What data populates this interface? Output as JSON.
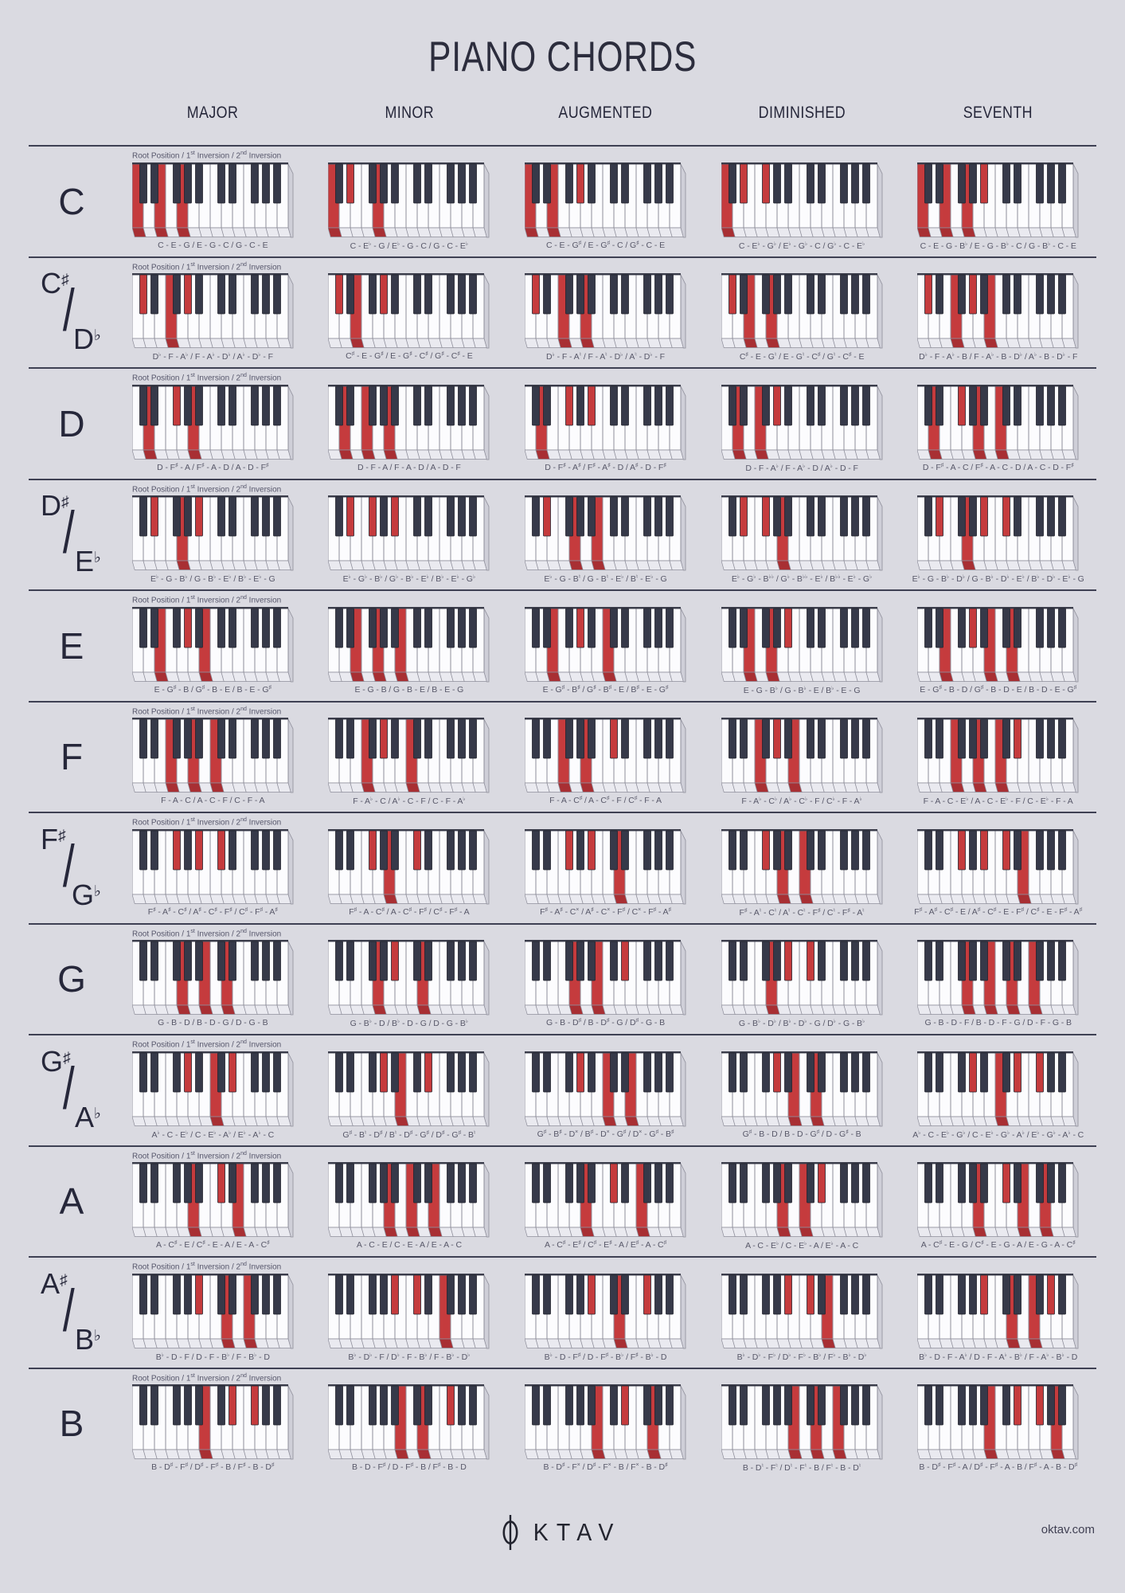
{
  "page": {
    "title": "PIANO CHORDS",
    "background": "#dadae1",
    "ink": "#2c2d3d",
    "accent_red": "#c53b3d",
    "divider_color": "#3e4053"
  },
  "columns": [
    "MAJOR",
    "MINOR",
    "AUGMENTED",
    "DIMINISHED",
    "SEVENTH"
  ],
  "caption": "Root Position  /  1st Inversion  /  2nd Inversion",
  "footer": {
    "brand": "OKTAV",
    "brand_letters_after_o": "KTAV",
    "site": "oktav.com"
  },
  "rows": [
    {
      "root_label": "C",
      "alt_label": null,
      "chords": [
        {
          "quality": "major",
          "notes": "C - E - G / E - G - C / G - C - E",
          "keys": [
            0,
            4,
            7
          ]
        },
        {
          "quality": "minor",
          "notes": "C - E♭ - G / E♭ - G - C / G - C - E♭",
          "keys": [
            0,
            3,
            7
          ]
        },
        {
          "quality": "augmented",
          "notes": "C - E - G♯ / E - G♯ - C / G♯ - C - E",
          "keys": [
            0,
            4,
            8
          ]
        },
        {
          "quality": "diminished",
          "notes": "C - E♭ - G♭ / E♭ - G♭ - C / G♭ - C - E♭",
          "keys": [
            0,
            3,
            6
          ]
        },
        {
          "quality": "seventh",
          "notes": "C - E - G - B♭ / E - G - B♭ - C / G - B♭ - C - E",
          "keys": [
            0,
            4,
            7,
            10
          ]
        }
      ]
    },
    {
      "root_label": "C♯",
      "alt_label": "D♭",
      "chords": [
        {
          "quality": "major",
          "notes": "D♭ - F - A♭ / F - A♭ - D♭ / A♭ - D♭ - F",
          "keys": [
            1,
            5,
            8
          ]
        },
        {
          "quality": "minor",
          "notes": "C♯ - E - G♯ / E - G♯ - C♯ / G♯ - C♯ - E",
          "keys": [
            1,
            4,
            8
          ]
        },
        {
          "quality": "augmented",
          "notes": "D♭ - F - A♮ / F - A♮ - D♭ / A♮ - D♭ - F",
          "keys": [
            1,
            5,
            9
          ]
        },
        {
          "quality": "diminished",
          "notes": "C♯ - E - G♮ / E - G♮ - C♯ / G♮ - C♯ - E",
          "keys": [
            1,
            4,
            7
          ]
        },
        {
          "quality": "seventh",
          "notes": "D♭ - F - A♭ - B / F - A♭ - B - D♭ / A♭ - B - D♭ - F",
          "keys": [
            1,
            5,
            8,
            11
          ]
        }
      ]
    },
    {
      "root_label": "D",
      "alt_label": null,
      "chords": [
        {
          "quality": "major",
          "notes": "D - F♯ - A / F♯ - A - D / A - D - F♯",
          "keys": [
            2,
            6,
            9
          ]
        },
        {
          "quality": "minor",
          "notes": "D - F - A / F - A - D / A - D - F",
          "keys": [
            2,
            5,
            9
          ]
        },
        {
          "quality": "augmented",
          "notes": "D - F♯ - A♯ / F♯ - A♯ - D / A♯ - D - F♯",
          "keys": [
            2,
            6,
            10
          ]
        },
        {
          "quality": "diminished",
          "notes": "D - F - A♭ / F - A♭ - D / A♭ - D - F",
          "keys": [
            2,
            5,
            8
          ]
        },
        {
          "quality": "seventh",
          "notes": "D - F♯ - A - C / F♯ - A - C - D / A - C - D - F♯",
          "keys": [
            2,
            6,
            9,
            12
          ]
        }
      ]
    },
    {
      "root_label": "D♯",
      "alt_label": "E♭",
      "chords": [
        {
          "quality": "major",
          "notes": "E♭ - G - B♭ / G - B♭ - E♭ / B♭ - E♭ - G",
          "keys": [
            3,
            7,
            10
          ]
        },
        {
          "quality": "minor",
          "notes": "E♭ - G♭ - B♭ / G♭ - B♭ - E♭ / B♭ - E♭ - G♭",
          "keys": [
            3,
            6,
            10
          ]
        },
        {
          "quality": "augmented",
          "notes": "E♭ - G - B♮ / G - B♮ - E♭ / B♮ - E♭ - G",
          "keys": [
            3,
            7,
            11
          ]
        },
        {
          "quality": "diminished",
          "notes": "E♭ - G♭ - B♭♭ / G♭ - B♭♭ - E♭ / B♭♭ - E♭ - G♭",
          "keys": [
            3,
            6,
            9
          ]
        },
        {
          "quality": "seventh",
          "notes": "E♭ - G - B♭ - D♭ / G - B♭ - D♭ - E♭ / B♭ - D♭ - E♭ - G",
          "keys": [
            3,
            7,
            10,
            13
          ]
        }
      ]
    },
    {
      "root_label": "E",
      "alt_label": null,
      "chords": [
        {
          "quality": "major",
          "notes": "E - G♯ - B / G♯ - B - E / B - E - G♯",
          "keys": [
            4,
            8,
            11
          ]
        },
        {
          "quality": "minor",
          "notes": "E - G - B / G - B - E / B - E - G",
          "keys": [
            4,
            7,
            11
          ]
        },
        {
          "quality": "augmented",
          "notes": "E - G♯ - B♯ / G♯ - B♯ - E / B♯ - E - G♯",
          "keys": [
            4,
            8,
            12
          ]
        },
        {
          "quality": "diminished",
          "notes": "E - G - B♭ / G - B♭ - E / B♭ - E - G",
          "keys": [
            4,
            7,
            10
          ]
        },
        {
          "quality": "seventh",
          "notes": "E - G♯ - B - D / G♯ - B - D - E / B - D - E - G♯",
          "keys": [
            4,
            8,
            11,
            14
          ]
        }
      ]
    },
    {
      "root_label": "F",
      "alt_label": null,
      "chords": [
        {
          "quality": "major",
          "notes": "F - A - C / A - C - F / C - F - A",
          "keys": [
            5,
            9,
            12
          ]
        },
        {
          "quality": "minor",
          "notes": "F - A♭ - C / A♭ - C - F / C - F - A♭",
          "keys": [
            5,
            8,
            12
          ]
        },
        {
          "quality": "augmented",
          "notes": "F - A - C♯ / A - C♯ - F / C♯ - F - A",
          "keys": [
            5,
            9,
            13
          ]
        },
        {
          "quality": "diminished",
          "notes": "F - A♭ - C♭ / A♭ - C♭ - F / C♭ - F - A♭",
          "keys": [
            5,
            8,
            11
          ]
        },
        {
          "quality": "seventh",
          "notes": "F - A - C - E♭ / A - C - E♭ - F / C - E♭ - F - A",
          "keys": [
            5,
            9,
            12,
            15
          ]
        }
      ]
    },
    {
      "root_label": "F♯",
      "alt_label": "G♭",
      "chords": [
        {
          "quality": "major",
          "notes": "F♯ - A♯ - C♯ / A♯ - C♯ - F♯ / C♯ - F♯ - A♯",
          "keys": [
            6,
            10,
            13
          ]
        },
        {
          "quality": "minor",
          "notes": "F♯ - A - C♯ / A - C♯ - F♯ / C♯ - F♯ - A",
          "keys": [
            6,
            9,
            13
          ]
        },
        {
          "quality": "augmented",
          "notes": "F♯ - A♯ - C× / A♯ - C× - F♯ / C× - F♯ - A♯",
          "keys": [
            6,
            10,
            14
          ]
        },
        {
          "quality": "diminished",
          "notes": "F♯ - A♮ - C♮ / A♮ - C♮ - F♯ / C♮ - F♯ - A♮",
          "keys": [
            6,
            9,
            12
          ]
        },
        {
          "quality": "seventh",
          "notes": "F♯ - A♯ - C♯ - E / A♯ - C♯ - E - F♯ / C♯ - E - F♯ - A♯",
          "keys": [
            6,
            10,
            13,
            16
          ]
        }
      ]
    },
    {
      "root_label": "G",
      "alt_label": null,
      "chords": [
        {
          "quality": "major",
          "notes": "G - B - D / B - D - G / D - G - B",
          "keys": [
            7,
            11,
            14
          ]
        },
        {
          "quality": "minor",
          "notes": "G - B♭ - D / B♭ - D - G / D - G - B♭",
          "keys": [
            7,
            10,
            14
          ]
        },
        {
          "quality": "augmented",
          "notes": "G - B - D♯ / B - D♯ - G / D♯ - G - B",
          "keys": [
            7,
            11,
            15
          ]
        },
        {
          "quality": "diminished",
          "notes": "G - B♭ - D♭ / B♭ - D♭ - G / D♭ - G - B♭",
          "keys": [
            7,
            10,
            13
          ]
        },
        {
          "quality": "seventh",
          "notes": "G - B - D - F / B - D - F - G / D - F - G - B",
          "keys": [
            7,
            11,
            14,
            17
          ]
        }
      ]
    },
    {
      "root_label": "G♯",
      "alt_label": "A♭",
      "chords": [
        {
          "quality": "major",
          "notes": "A♭ - C - E♭ / C - E♭ - A♭ / E♭ - A♭ - C",
          "keys": [
            8,
            12,
            15
          ]
        },
        {
          "quality": "minor",
          "notes": "G♯ - B♮ - D♯ / B♮ - D♯ - G♯ / D♯ - G♯ - B♮",
          "keys": [
            8,
            11,
            15
          ]
        },
        {
          "quality": "augmented",
          "notes": "G♯ - B♯ - D× / B♯ - D× - G♯ / D× - G♯ - B♯",
          "keys": [
            8,
            12,
            16
          ]
        },
        {
          "quality": "diminished",
          "notes": "G♯ - B - D / B - D - G♯ / D - G♯ - B",
          "keys": [
            8,
            11,
            14
          ]
        },
        {
          "quality": "seventh",
          "notes": "A♭ - C - E♭ - G♭ / C - E♭ - G♭ - A♭ / E♭ - G♭ - A♭ - C",
          "keys": [
            8,
            12,
            15,
            18
          ]
        }
      ]
    },
    {
      "root_label": "A",
      "alt_label": null,
      "chords": [
        {
          "quality": "major",
          "notes": "A - C♯ - E / C♯ - E - A / E - A - C♯",
          "keys": [
            9,
            13,
            16
          ]
        },
        {
          "quality": "minor",
          "notes": "A - C - E / C - E - A / E - A - C",
          "keys": [
            9,
            12,
            16
          ]
        },
        {
          "quality": "augmented",
          "notes": "A - C♯ - E♯ / C♯ - E♯ - A / E♯ - A - C♯",
          "keys": [
            9,
            13,
            17
          ]
        },
        {
          "quality": "diminished",
          "notes": "A - C - E♭ / C - E♭ - A / E♭ - A - C",
          "keys": [
            9,
            12,
            15
          ]
        },
        {
          "quality": "seventh",
          "notes": "A - C♯ - E - G / C♯ - E - G - A / E - G - A - C♯",
          "keys": [
            9,
            13,
            16,
            19
          ]
        }
      ]
    },
    {
      "root_label": "A♯",
      "alt_label": "B♭",
      "chords": [
        {
          "quality": "major",
          "notes": "B♭ - D - F / D - F - B♭ / F - B♭ - D",
          "keys": [
            10,
            14,
            17
          ]
        },
        {
          "quality": "minor",
          "notes": "B♭ - D♭ - F / D♭ - F - B♭ / F - B♭ - D♭",
          "keys": [
            10,
            13,
            17
          ]
        },
        {
          "quality": "augmented",
          "notes": "B♭ - D - F♯ / D - F♯ - B♭ / F♯ - B♭ - D",
          "keys": [
            10,
            14,
            18
          ]
        },
        {
          "quality": "diminished",
          "notes": "B♭ - D♭ - F♭ / D♭ - F♭ - B♭ / F♭ - B♭ - D♭",
          "keys": [
            10,
            13,
            16
          ]
        },
        {
          "quality": "seventh",
          "notes": "B♭ - D - F - A♭ / D - F - A♭ - B♭ / F - A♭ - B♭ - D",
          "keys": [
            10,
            14,
            17,
            20
          ]
        }
      ]
    },
    {
      "root_label": "B",
      "alt_label": null,
      "chords": [
        {
          "quality": "major",
          "notes": "B - D♯ - F♯ / D♯ - F♯ - B / F♯ - B - D♯",
          "keys": [
            11,
            15,
            18
          ]
        },
        {
          "quality": "minor",
          "notes": "B - D - F♯ / D - F♯ - B / F♯ - B - D",
          "keys": [
            11,
            14,
            18
          ]
        },
        {
          "quality": "augmented",
          "notes": "B - D♯ - F× / D♯ - F× - B / F× - B - D♯",
          "keys": [
            11,
            15,
            19
          ]
        },
        {
          "quality": "diminished",
          "notes": "B - D♮ - F♮ / D♮ - F♮ - B / F♮ - B - D♮",
          "keys": [
            11,
            14,
            17
          ]
        },
        {
          "quality": "seventh",
          "notes": "B - D♯ - F♯ - A / D♯ - F♯ - A - B / F♯ - A - B - D♯",
          "keys": [
            11,
            15,
            18,
            21
          ]
        }
      ]
    }
  ]
}
